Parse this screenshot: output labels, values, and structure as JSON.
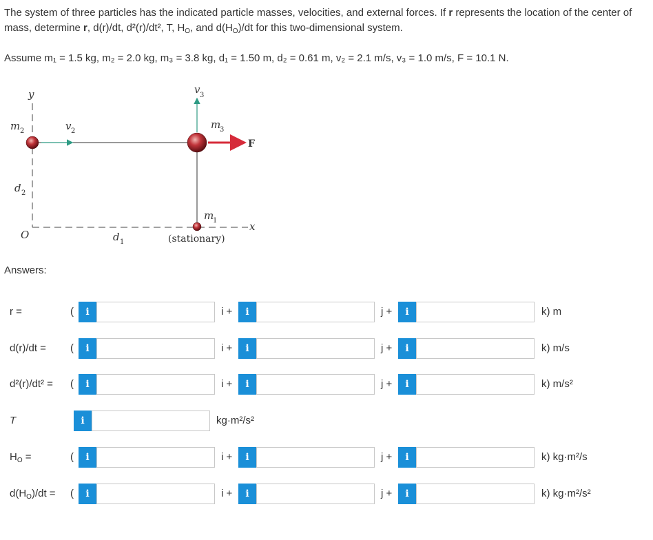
{
  "problem": {
    "text_1": "The system of three particles has the indicated particle masses, velocities, and external forces. If ",
    "text_r": "r",
    "text_2": " represents the location of the center of mass, determine ",
    "text_r2": "r",
    "text_3": ", d(r)/dt, d²(r)/dt², T, H",
    "text_O": "O",
    "text_4": ", and d(H",
    "text_O2": "O",
    "text_5": ")/dt for this two-dimensional system."
  },
  "assume": "Assume m₁ = 1.5 kg, m₂ = 2.0 kg, m₃ = 3.8 kg, d₁ = 1.50 m, d₂ = 0.61 m, v₂ = 2.1 m/s, v₃ = 1.0 m/s, F = 10.1 N.",
  "figure": {
    "y_axis": "y",
    "x_axis": "x",
    "origin": "O",
    "m2": "m",
    "m2_sub": "2",
    "v2": "v",
    "v2_sub": "2",
    "v3": "v",
    "v3_sub": "3",
    "m3": "m",
    "m3_sub": "3",
    "F": "F",
    "d2": "d",
    "d2_sub": "2",
    "d1": "d",
    "d1_sub": "1",
    "m1": "m",
    "m1_sub": "1",
    "stationary": "(stationary)",
    "colors": {
      "mass": "#c0343a",
      "arrow_v": "#2e9b84",
      "arrow_F": "#d62b3a"
    }
  },
  "answers_label": "Answers:",
  "rows": [
    {
      "label": "r =",
      "open": "(",
      "i_conn": "i +",
      "j_conn": "j +",
      "unit": "k) m",
      "i_value": "",
      "j_value": "",
      "k_value": ""
    },
    {
      "label": "d(r)/dt =",
      "open": "(",
      "i_conn": "i +",
      "j_conn": "j +",
      "unit": "k) m/s",
      "i_value": "",
      "j_value": "",
      "k_value": ""
    },
    {
      "label": "d²(r)/dt² =",
      "open": "(",
      "i_conn": "i +",
      "j_conn": "j +",
      "unit": "k) m/s²",
      "i_value": "",
      "j_value": "",
      "k_value": ""
    },
    {
      "label": "T",
      "unit": "kg·m²/s²",
      "value": ""
    },
    {
      "label": "H",
      "label_sub": "O",
      "label_tail": " =",
      "open": "(",
      "i_conn": "i +",
      "j_conn": "j +",
      "unit": "k) kg·m²/s",
      "i_value": "",
      "j_value": "",
      "k_value": ""
    },
    {
      "label": "d(H",
      "label_sub": "O",
      "label_tail": ")/dt =",
      "open": "(",
      "i_conn": "i +",
      "j_conn": "j +",
      "unit": "k) kg·m²/s²",
      "i_value": "",
      "j_value": "",
      "k_value": ""
    }
  ],
  "info_glyph": "i"
}
